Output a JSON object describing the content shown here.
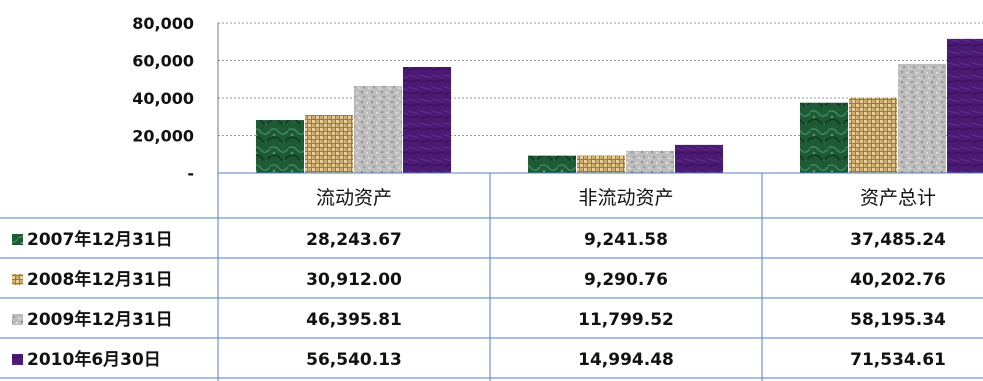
{
  "chart_data": {
    "type": "bar",
    "categories": [
      "流动资产",
      "非流动资产",
      "资产总计"
    ],
    "series": [
      {
        "name": "2007年12月31日",
        "values": [
          28243.67,
          9241.58,
          37485.24
        ],
        "display": [
          "28,243.67",
          "9,241.58",
          "37,485.24"
        ],
        "color": "#1f5a36",
        "texture": "marble"
      },
      {
        "name": "2008年12月31日",
        "values": [
          30912.0,
          9290.76,
          40202.76
        ],
        "display": [
          "30,912.00",
          "9,290.76",
          "40,202.76"
        ],
        "color": "#c9a567",
        "texture": "weave"
      },
      {
        "name": "2009年12月31日",
        "values": [
          46395.81,
          11799.52,
          58195.34
        ],
        "display": [
          "46,395.81",
          "11,799.52",
          "58,195.34"
        ],
        "color": "#b8b8b8",
        "texture": "granite"
      },
      {
        "name": "2010年6月30日",
        "values": [
          56540.13,
          14994.48,
          71534.61
        ],
        "display": [
          "56,540.13",
          "14,994.48",
          "71,534.61"
        ],
        "color": "#4b1a73",
        "texture": "solid"
      }
    ],
    "yticks": [
      {
        "value": 0,
        "label": "-"
      },
      {
        "value": 20000,
        "label": "20,000"
      },
      {
        "value": 40000,
        "label": "40,000"
      },
      {
        "value": 60000,
        "label": "60,000"
      },
      {
        "value": 80000,
        "label": "80,000"
      }
    ],
    "ylim": [
      0,
      80000
    ],
    "grid": true,
    "legend": "data-table-left"
  }
}
